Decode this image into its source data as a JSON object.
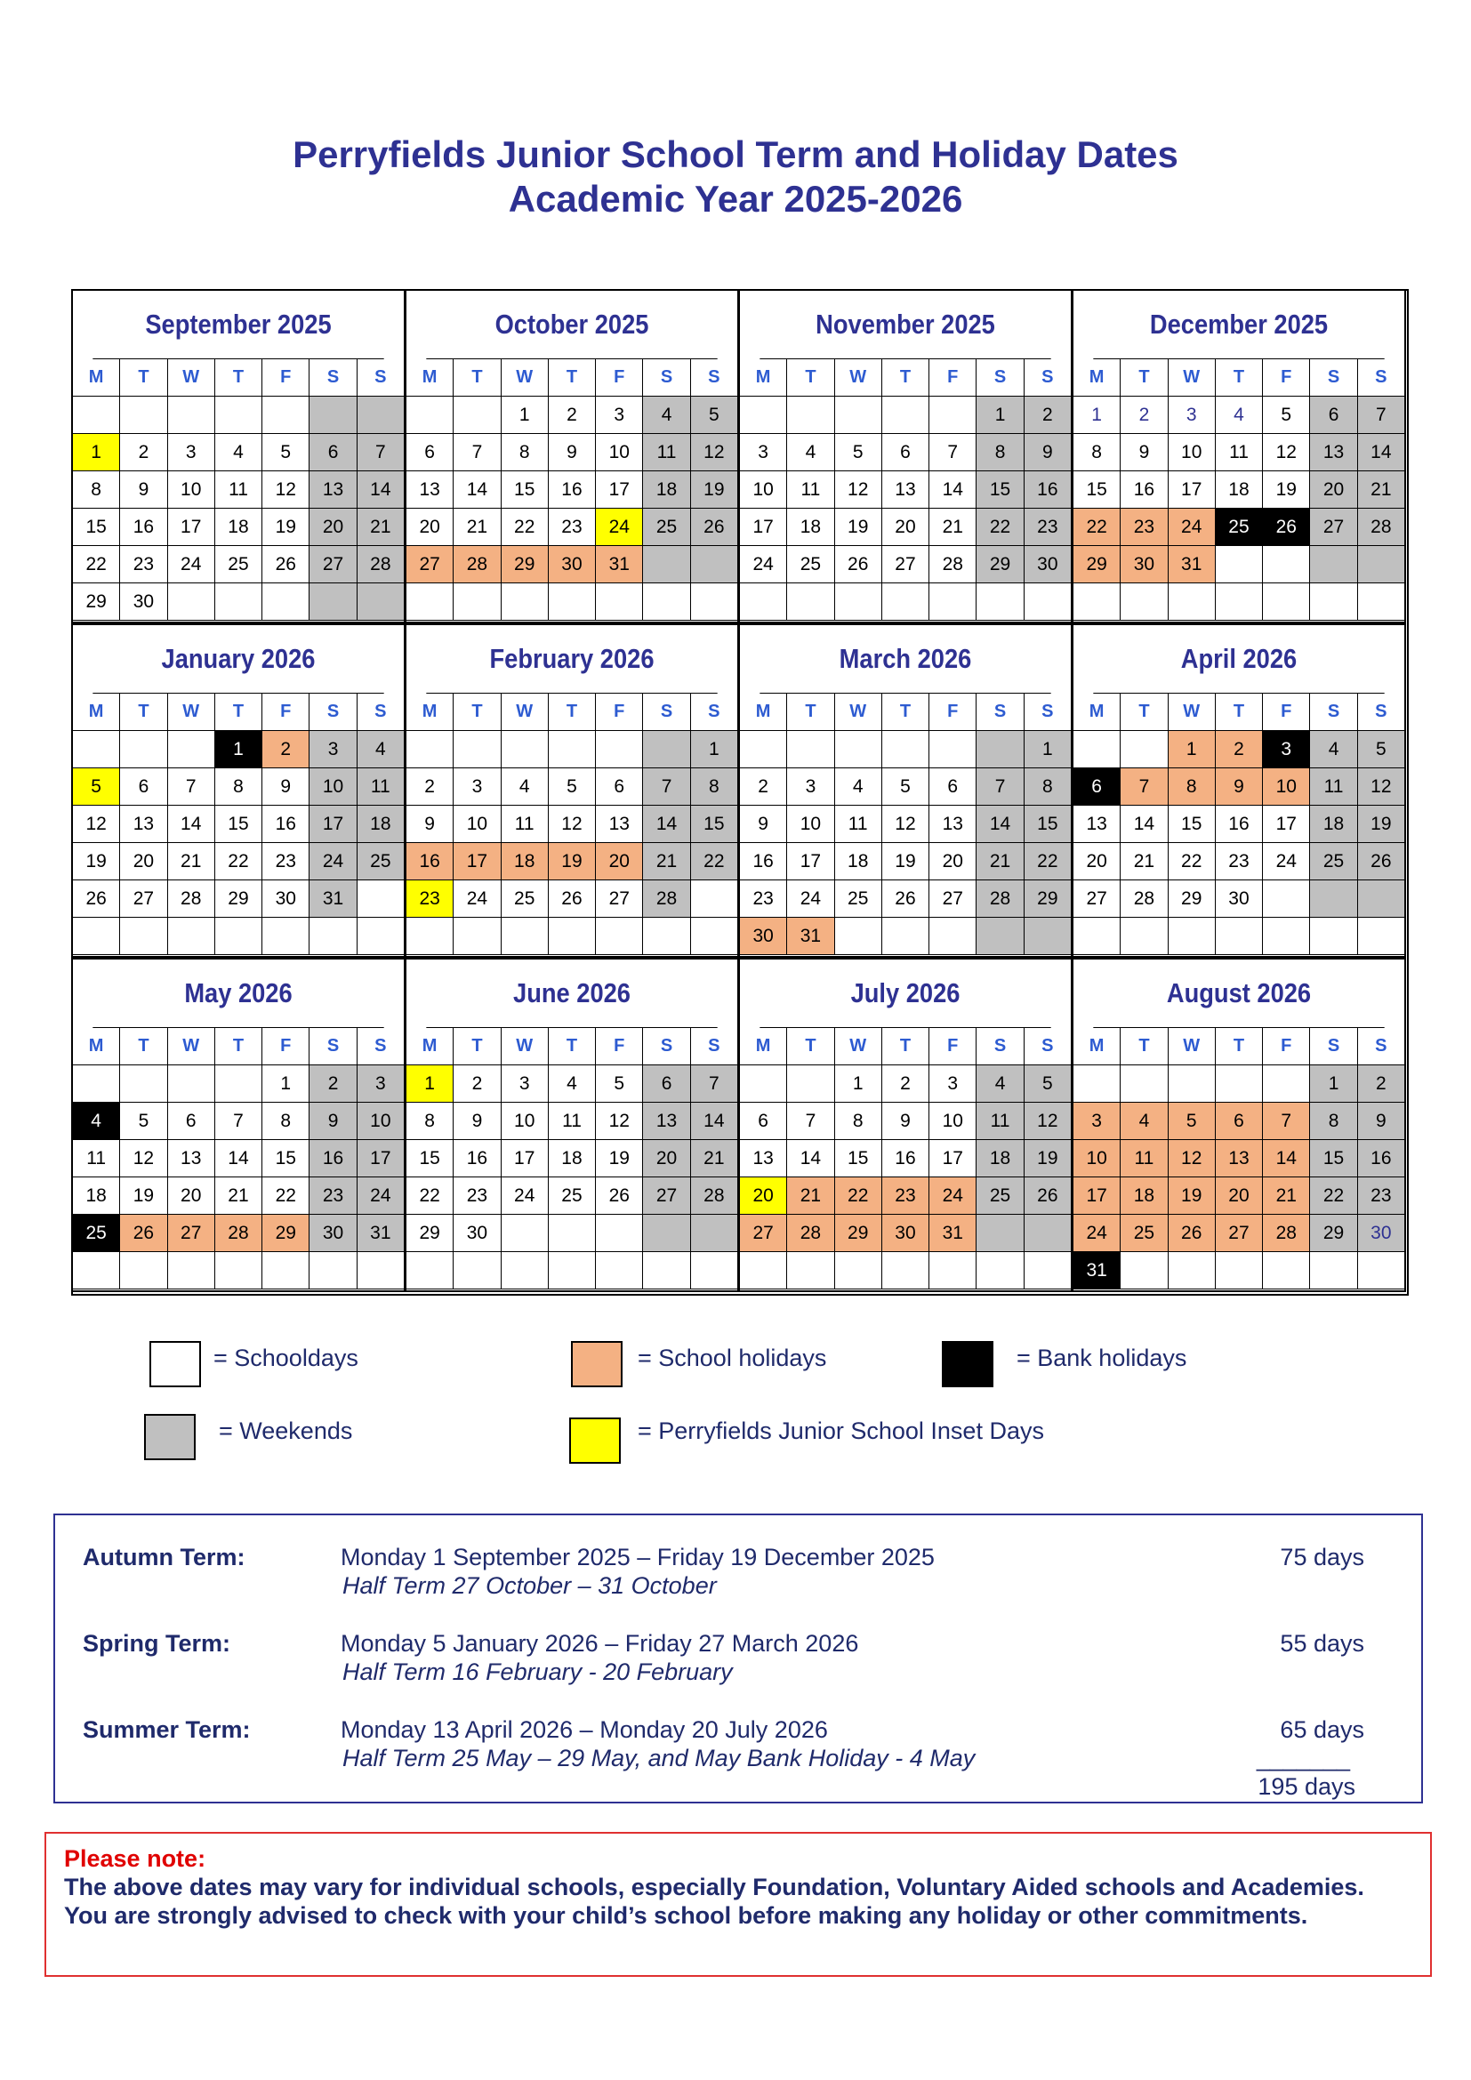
{
  "header": {
    "title": "Perryfields Junior School Term and Holiday Dates",
    "subtitle": "Academic Year 2025-2026"
  },
  "weekdays": [
    "M",
    "T",
    "W",
    "T",
    "F",
    "S",
    "S"
  ],
  "months": [
    {
      "name": "September 2025",
      "weeks": [
        {
          "days": [
            null,
            null,
            null,
            null,
            null,
            null,
            null
          ],
          "kinds": "sssssww"
        },
        {
          "days": [
            1,
            2,
            3,
            4,
            5,
            6,
            7
          ],
          "kinds": "issssww"
        },
        {
          "days": [
            8,
            9,
            10,
            11,
            12,
            13,
            14
          ],
          "kinds": "sssssww"
        },
        {
          "days": [
            15,
            16,
            17,
            18,
            19,
            20,
            21
          ],
          "kinds": "sssssww"
        },
        {
          "days": [
            22,
            23,
            24,
            25,
            26,
            27,
            28
          ],
          "kinds": "sssssww"
        },
        {
          "days": [
            29,
            30,
            null,
            null,
            null,
            null,
            null
          ],
          "kinds": "sssssww"
        }
      ]
    },
    {
      "name": "October 2025",
      "weeks": [
        {
          "days": [
            null,
            null,
            1,
            2,
            3,
            4,
            5
          ],
          "kinds": "sssssww"
        },
        {
          "days": [
            6,
            7,
            8,
            9,
            10,
            11,
            12
          ],
          "kinds": "sssssww"
        },
        {
          "days": [
            13,
            14,
            15,
            16,
            17,
            18,
            19
          ],
          "kinds": "sssssww"
        },
        {
          "days": [
            20,
            21,
            22,
            23,
            24,
            25,
            26
          ],
          "kinds": "ssssiww"
        },
        {
          "days": [
            27,
            28,
            29,
            30,
            31,
            null,
            null
          ],
          "kinds": "hhhhhww"
        },
        {
          "days": [
            null,
            null,
            null,
            null,
            null,
            null,
            null
          ],
          "kinds": "sssssss"
        }
      ]
    },
    {
      "name": "November 2025",
      "weeks": [
        {
          "days": [
            null,
            null,
            null,
            null,
            null,
            1,
            2
          ],
          "kinds": "sssssww"
        },
        {
          "days": [
            3,
            4,
            5,
            6,
            7,
            8,
            9
          ],
          "kinds": "sssssww"
        },
        {
          "days": [
            10,
            11,
            12,
            13,
            14,
            15,
            16
          ],
          "kinds": "sssssww"
        },
        {
          "days": [
            17,
            18,
            19,
            20,
            21,
            22,
            23
          ],
          "kinds": "sssssww"
        },
        {
          "days": [
            24,
            25,
            26,
            27,
            28,
            29,
            30
          ],
          "kinds": "sssssww"
        },
        {
          "days": [
            null,
            null,
            null,
            null,
            null,
            null,
            null
          ],
          "kinds": "sssssss"
        }
      ]
    },
    {
      "name": "December 2025",
      "weeks": [
        {
          "days": [
            1,
            2,
            3,
            4,
            5,
            6,
            7
          ],
          "kinds": "uuuusww"
        },
        {
          "days": [
            8,
            9,
            10,
            11,
            12,
            13,
            14
          ],
          "kinds": "sssssww"
        },
        {
          "days": [
            15,
            16,
            17,
            18,
            19,
            20,
            21
          ],
          "kinds": "sssssww"
        },
        {
          "days": [
            22,
            23,
            24,
            25,
            26,
            27,
            28
          ],
          "kinds": "hhhbbww"
        },
        {
          "days": [
            29,
            30,
            31,
            null,
            null,
            null,
            null
          ],
          "kinds": "hhhssww"
        },
        {
          "days": [
            null,
            null,
            null,
            null,
            null,
            null,
            null
          ],
          "kinds": "sssssss"
        }
      ]
    },
    {
      "name": "January 2026",
      "weeks": [
        {
          "days": [
            null,
            null,
            null,
            1,
            2,
            3,
            4
          ],
          "kinds": "sssbhww"
        },
        {
          "days": [
            5,
            6,
            7,
            8,
            9,
            10,
            11
          ],
          "kinds": "issssww"
        },
        {
          "days": [
            12,
            13,
            14,
            15,
            16,
            17,
            18
          ],
          "kinds": "sssssww"
        },
        {
          "days": [
            19,
            20,
            21,
            22,
            23,
            24,
            25
          ],
          "kinds": "sssssww"
        },
        {
          "days": [
            26,
            27,
            28,
            29,
            30,
            31,
            null
          ],
          "kinds": "sssssws"
        },
        {
          "days": [
            null,
            null,
            null,
            null,
            null,
            null,
            null
          ],
          "kinds": "sssssss"
        }
      ]
    },
    {
      "name": "February 2026",
      "weeks": [
        {
          "days": [
            null,
            null,
            null,
            null,
            null,
            null,
            1
          ],
          "kinds": "sssssww"
        },
        {
          "days": [
            2,
            3,
            4,
            5,
            6,
            7,
            8
          ],
          "kinds": "sssssww"
        },
        {
          "days": [
            9,
            10,
            11,
            12,
            13,
            14,
            15
          ],
          "kinds": "sssssww"
        },
        {
          "days": [
            16,
            17,
            18,
            19,
            20,
            21,
            22
          ],
          "kinds": "hhhhhww"
        },
        {
          "days": [
            23,
            24,
            25,
            26,
            27,
            28,
            null
          ],
          "kinds": "issssws"
        },
        {
          "days": [
            null,
            null,
            null,
            null,
            null,
            null,
            null
          ],
          "kinds": "sssssss"
        }
      ]
    },
    {
      "name": "March 2026",
      "weeks": [
        {
          "days": [
            null,
            null,
            null,
            null,
            null,
            null,
            1
          ],
          "kinds": "sssssww"
        },
        {
          "days": [
            2,
            3,
            4,
            5,
            6,
            7,
            8
          ],
          "kinds": "sssssww"
        },
        {
          "days": [
            9,
            10,
            11,
            12,
            13,
            14,
            15
          ],
          "kinds": "sssssww"
        },
        {
          "days": [
            16,
            17,
            18,
            19,
            20,
            21,
            22
          ],
          "kinds": "sssssww"
        },
        {
          "days": [
            23,
            24,
            25,
            26,
            27,
            28,
            29
          ],
          "kinds": "sssssww"
        },
        {
          "days": [
            30,
            31,
            null,
            null,
            null,
            null,
            null
          ],
          "kinds": "hhsssww"
        }
      ]
    },
    {
      "name": "April 2026",
      "weeks": [
        {
          "days": [
            null,
            null,
            1,
            2,
            3,
            4,
            5
          ],
          "kinds": "sshhbww"
        },
        {
          "days": [
            6,
            7,
            8,
            9,
            10,
            11,
            12
          ],
          "kinds": "bhhhhww"
        },
        {
          "days": [
            13,
            14,
            15,
            16,
            17,
            18,
            19
          ],
          "kinds": "sssssww"
        },
        {
          "days": [
            20,
            21,
            22,
            23,
            24,
            25,
            26
          ],
          "kinds": "sssssww"
        },
        {
          "days": [
            27,
            28,
            29,
            30,
            null,
            null,
            null
          ],
          "kinds": "sssssww"
        },
        {
          "days": [
            null,
            null,
            null,
            null,
            null,
            null,
            null
          ],
          "kinds": "sssssss"
        }
      ]
    },
    {
      "name": "May 2026",
      "weeks": [
        {
          "days": [
            null,
            null,
            null,
            null,
            1,
            2,
            3
          ],
          "kinds": "sssssww"
        },
        {
          "days": [
            4,
            5,
            6,
            7,
            8,
            9,
            10
          ],
          "kinds": "bssssww"
        },
        {
          "days": [
            11,
            12,
            13,
            14,
            15,
            16,
            17
          ],
          "kinds": "sssssww"
        },
        {
          "days": [
            18,
            19,
            20,
            21,
            22,
            23,
            24
          ],
          "kinds": "sssssww"
        },
        {
          "days": [
            25,
            26,
            27,
            28,
            29,
            30,
            31
          ],
          "kinds": "bhhhhww"
        },
        {
          "days": [
            null,
            null,
            null,
            null,
            null,
            null,
            null
          ],
          "kinds": "sssssss"
        }
      ]
    },
    {
      "name": "June 2026",
      "weeks": [
        {
          "days": [
            1,
            2,
            3,
            4,
            5,
            6,
            7
          ],
          "kinds": "issssww"
        },
        {
          "days": [
            8,
            9,
            10,
            11,
            12,
            13,
            14
          ],
          "kinds": "sssssww"
        },
        {
          "days": [
            15,
            16,
            17,
            18,
            19,
            20,
            21
          ],
          "kinds": "sssssww"
        },
        {
          "days": [
            22,
            23,
            24,
            25,
            26,
            27,
            28
          ],
          "kinds": "sssssww"
        },
        {
          "days": [
            29,
            30,
            null,
            null,
            null,
            null,
            null
          ],
          "kinds": "sssssww"
        },
        {
          "days": [
            null,
            null,
            null,
            null,
            null,
            null,
            null
          ],
          "kinds": "sssssss"
        }
      ]
    },
    {
      "name": "July 2026",
      "weeks": [
        {
          "days": [
            null,
            null,
            1,
            2,
            3,
            4,
            5
          ],
          "kinds": "sssssww"
        },
        {
          "days": [
            6,
            7,
            8,
            9,
            10,
            11,
            12
          ],
          "kinds": "sssssww"
        },
        {
          "days": [
            13,
            14,
            15,
            16,
            17,
            18,
            19
          ],
          "kinds": "sssssww"
        },
        {
          "days": [
            20,
            21,
            22,
            23,
            24,
            25,
            26
          ],
          "kinds": "ihhhhww"
        },
        {
          "days": [
            27,
            28,
            29,
            30,
            31,
            null,
            null
          ],
          "kinds": "hhhhhww"
        },
        {
          "days": [
            null,
            null,
            null,
            null,
            null,
            null,
            null
          ],
          "kinds": "sssssss"
        }
      ]
    },
    {
      "name": "August 2026",
      "weeks": [
        {
          "days": [
            null,
            null,
            null,
            null,
            null,
            1,
            2
          ],
          "kinds": "sssssww"
        },
        {
          "days": [
            3,
            4,
            5,
            6,
            7,
            8,
            9
          ],
          "kinds": "hhhhhww"
        },
        {
          "days": [
            10,
            11,
            12,
            13,
            14,
            15,
            16
          ],
          "kinds": "hhhhhww"
        },
        {
          "days": [
            17,
            18,
            19,
            20,
            21,
            22,
            23
          ],
          "kinds": "hhhhhww"
        },
        {
          "days": [
            24,
            25,
            26,
            27,
            28,
            29,
            30
          ],
          "kinds": "hhhhhwv"
        },
        {
          "days": [
            31,
            null,
            null,
            null,
            null,
            null,
            null
          ],
          "kinds": "bssssss"
        }
      ]
    }
  ],
  "legend": [
    {
      "kind": "s",
      "label": "= Schooldays"
    },
    {
      "kind": "h",
      "label": "= School holidays"
    },
    {
      "kind": "b",
      "label": "= Bank holidays"
    },
    {
      "kind": "w",
      "label": "= Weekends"
    },
    {
      "kind": "i",
      "label": "= Perryfields Junior School Inset Days"
    }
  ],
  "terms": [
    {
      "name": "Autumn Term:",
      "dates": "Monday 1 September 2025 – Friday 19 December 2025",
      "half_term": "Half Term 27 October – 31 October",
      "days": "75 days"
    },
    {
      "name": "Spring Term:",
      "dates": "Monday 5 January 2026 – Friday 27 March 2026",
      "half_term": "Half Term 16 February - 20 February",
      "days": "55 days"
    },
    {
      "name": "Summer Term:",
      "dates": "Monday 13 April 2026 – Monday 20 July 2026",
      "half_term": "Half Term 25 May – 29 May, and May Bank Holiday - 4 May",
      "days": "65 days"
    }
  ],
  "total": {
    "rule": "_______",
    "days": "195 days"
  },
  "notice": {
    "heading": "Please note:",
    "lines": [
      "The above dates may vary for individual schools, especially Foundation, Voluntary Aided schools and Academies.",
      "You are strongly advised to check with your child’s school before making any holiday or other commitments."
    ]
  }
}
